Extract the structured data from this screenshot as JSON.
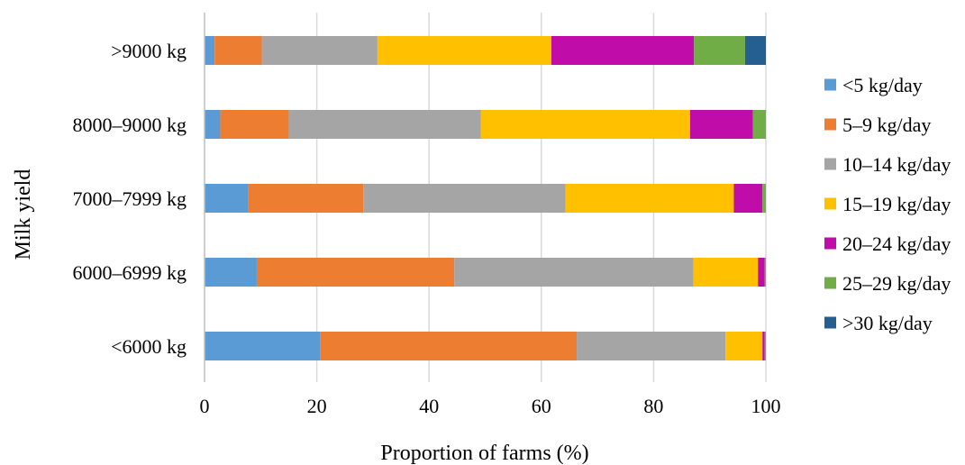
{
  "chart_data": {
    "type": "bar",
    "orientation": "horizontal",
    "stacked": true,
    "title": "",
    "xlabel": "Proportion of farms (%)",
    "ylabel": "Milk yield",
    "xlim": [
      0,
      100
    ],
    "x_ticks": [
      "0",
      "20",
      "40",
      "60",
      "80",
      "100"
    ],
    "grid": "vertical",
    "legend_position": "right",
    "categories": [
      ">9000 kg",
      "8000–9000 kg",
      "7000–7999 kg",
      "6000–6999 kg",
      "<6000 kg"
    ],
    "series": [
      {
        "name": "<5 kg/day",
        "color": "#5b9bd5",
        "values": [
          1.8,
          2.8,
          7.8,
          9.3,
          20.6
        ]
      },
      {
        "name": "5–9 kg/day",
        "color": "#ed7d31",
        "values": [
          8.4,
          12.2,
          20.5,
          35.2,
          45.7
        ]
      },
      {
        "name": "10–14 kg/day",
        "color": "#a5a5a5",
        "values": [
          20.6,
          34.2,
          36.0,
          42.6,
          26.5
        ]
      },
      {
        "name": "15–19 kg/day",
        "color": "#ffc000",
        "values": [
          31.0,
          37.3,
          30.0,
          11.5,
          6.6
        ]
      },
      {
        "name": "20–24 kg/day",
        "color": "#c00ca8",
        "values": [
          25.4,
          11.2,
          5.1,
          1.2,
          0.4
        ]
      },
      {
        "name": "25–29 kg/day",
        "color": "#70ad47",
        "values": [
          9.1,
          2.3,
          0.6,
          0.2,
          0.2
        ]
      },
      {
        "name": ">30 kg/day",
        "color": "#255e91",
        "values": [
          3.7,
          0.0,
          0.0,
          0.0,
          0.0
        ]
      }
    ]
  }
}
